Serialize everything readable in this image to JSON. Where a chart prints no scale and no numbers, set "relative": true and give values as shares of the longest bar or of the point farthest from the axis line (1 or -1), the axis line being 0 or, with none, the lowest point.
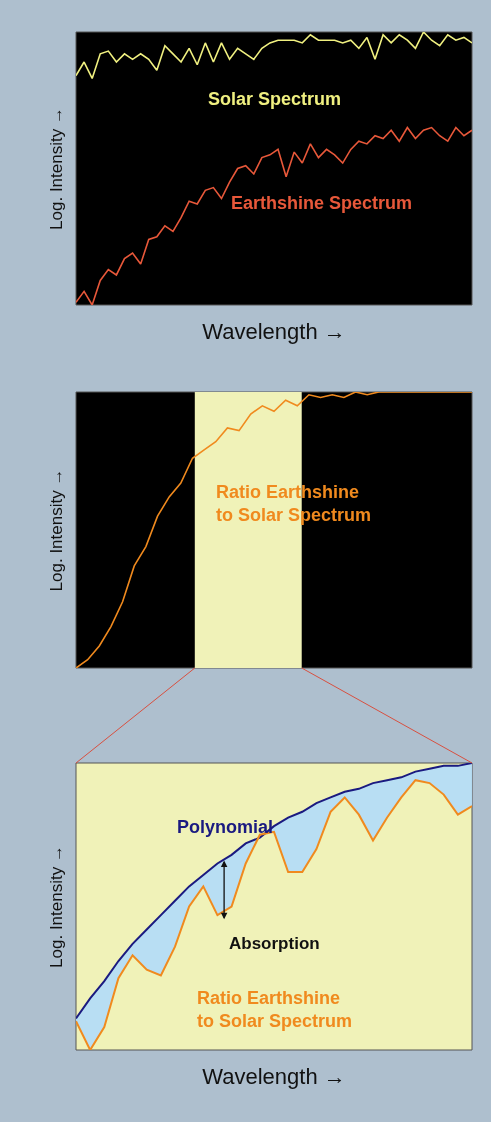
{
  "chart_data": [
    {
      "type": "line",
      "relative": true,
      "xlabel": "Wavelength →",
      "ylabel": "Log. Intensity →",
      "grid": false,
      "categories": [
        null,
        null,
        null,
        null,
        null,
        null,
        null,
        null,
        null,
        null,
        null,
        null,
        null,
        null,
        null,
        null,
        null,
        null,
        null,
        null,
        null,
        null,
        null,
        null,
        null,
        null,
        null,
        null,
        null,
        null,
        null,
        null,
        null,
        null,
        null,
        null,
        null,
        null,
        null,
        null,
        null,
        null,
        null,
        null,
        null,
        null,
        null,
        null,
        null,
        null
      ],
      "series": [
        {
          "name": "Solar Spectrum",
          "color": "#f0f080",
          "values": [
            0.84,
            0.89,
            0.83,
            0.92,
            0.93,
            0.89,
            0.92,
            0.9,
            0.92,
            0.9,
            0.86,
            0.95,
            0.92,
            0.89,
            0.94,
            0.88,
            0.96,
            0.89,
            0.96,
            0.9,
            0.94,
            0.92,
            0.9,
            0.94,
            0.96,
            0.97,
            0.97,
            0.97,
            0.96,
            0.99,
            0.97,
            0.97,
            0.97,
            0.96,
            0.97,
            0.94,
            0.98,
            0.9,
            0.99,
            0.96,
            0.99,
            0.97,
            0.94,
            1.0,
            0.97,
            0.95,
            0.99,
            0.97,
            0.98,
            0.96
          ]
        },
        {
          "name": "Earthshine Spectrum",
          "color": "#e8583a",
          "values": [
            0.01,
            0.05,
            0,
            0.09,
            0.13,
            0.11,
            0.17,
            0.19,
            0.15,
            0.24,
            0.25,
            0.29,
            0.27,
            0.32,
            0.38,
            0.37,
            0.42,
            0.43,
            0.39,
            0.45,
            0.5,
            0.51,
            0.48,
            0.54,
            0.55,
            0.57,
            0.47,
            0.56,
            0.52,
            0.59,
            0.54,
            0.57,
            0.55,
            0.52,
            0.57,
            0.6,
            0.59,
            0.62,
            0.61,
            0.64,
            0.6,
            0.65,
            0.61,
            0.64,
            0.65,
            0.62,
            0.6,
            0.65,
            0.62,
            0.64
          ]
        }
      ]
    },
    {
      "type": "line",
      "relative": true,
      "ylabel": "Log. Intensity →",
      "grid": false,
      "categories": [
        null,
        null,
        null,
        null,
        null,
        null,
        null,
        null,
        null,
        null,
        null,
        null,
        null,
        null,
        null,
        null,
        null,
        null,
        null,
        null,
        null,
        null,
        null,
        null,
        null,
        null,
        null,
        null,
        null,
        null,
        null,
        null,
        null,
        null,
        null
      ],
      "series": [
        {
          "name": "Ratio Earthshine\nto Solar Spectrum",
          "color": "#f08a1e",
          "values": [
            0,
            0.03,
            0.08,
            0.15,
            0.24,
            0.37,
            0.44,
            0.55,
            0.62,
            0.67,
            0.76,
            0.79,
            0.82,
            0.87,
            0.86,
            0.92,
            0.95,
            0.93,
            0.97,
            0.95,
            0.99,
            0.98,
            0.99,
            0.98,
            1.0,
            0.99,
            1.0,
            1.0,
            1.0,
            1.0,
            1.0,
            1.0,
            1.0,
            1.0,
            1.0
          ]
        }
      ]
    },
    {
      "type": "line",
      "relative": true,
      "xlabel": "Wavelength →",
      "ylabel": "Log. Intensity →",
      "grid": false,
      "annotations": [
        "Absorption"
      ],
      "categories": [
        null,
        null,
        null,
        null,
        null,
        null,
        null,
        null,
        null,
        null,
        null,
        null,
        null,
        null,
        null,
        null,
        null,
        null,
        null,
        null,
        null,
        null,
        null,
        null,
        null,
        null,
        null,
        null,
        null
      ],
      "series": [
        {
          "name": "Polynomial",
          "color": "#1a1a80",
          "values": [
            0.11,
            0.18,
            0.24,
            0.31,
            0.37,
            0.42,
            0.47,
            0.52,
            0.57,
            0.61,
            0.65,
            0.68,
            0.72,
            0.74,
            0.78,
            0.81,
            0.83,
            0.86,
            0.88,
            0.9,
            0.91,
            0.93,
            0.94,
            0.95,
            0.97,
            0.98,
            0.99,
            0.99,
            1.0
          ],
          "upper": [
            0.11,
            0.18,
            0.24,
            0.31,
            0.37,
            0.42,
            0.47,
            0.52,
            0.57,
            0.61,
            0.65,
            0.68,
            0.72,
            0.74,
            0.78,
            0.81,
            0.83,
            0.86,
            0.88,
            0.9,
            0.91,
            0.93,
            0.94,
            0.95,
            0.97,
            0.98,
            0.99,
            0.99,
            1.0
          ],
          "lower": [
            0.1,
            0,
            0.08,
            0.25,
            0.33,
            0.28,
            0.26,
            0.36,
            0.5,
            0.57,
            0.47,
            0.5,
            0.65,
            0.75,
            0.76,
            0.62,
            0.62,
            0.7,
            0.83,
            0.88,
            0.82,
            0.73,
            0.81,
            0.88,
            0.94,
            0.93,
            0.89,
            0.82,
            0.85
          ]
        },
        {
          "name": "Ratio Earthshine\nto Solar Spectrum",
          "color": "#f08a1e",
          "values": [
            0.1,
            0,
            0.08,
            0.25,
            0.33,
            0.28,
            0.26,
            0.36,
            0.5,
            0.57,
            0.47,
            0.5,
            0.65,
            0.75,
            0.76,
            0.62,
            0.62,
            0.7,
            0.83,
            0.88,
            0.82,
            0.73,
            0.81,
            0.88,
            0.94,
            0.93,
            0.89,
            0.82,
            0.85
          ]
        }
      ]
    }
  ]
}
